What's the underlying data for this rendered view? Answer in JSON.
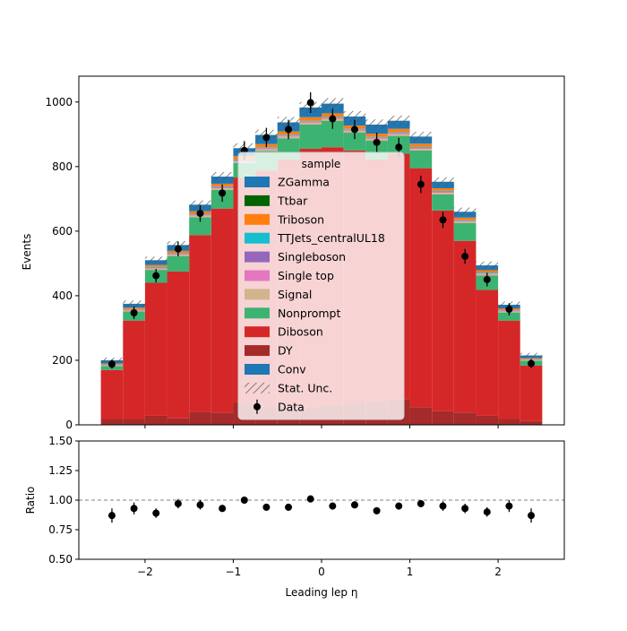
{
  "chart_data": {
    "type": "bar",
    "subtype": "stacked-histogram-with-ratio",
    "x_edges": [
      -2.5,
      -2.25,
      -2.0,
      -1.75,
      -1.5,
      -1.25,
      -1.0,
      -0.75,
      -0.5,
      -0.25,
      0.0,
      0.25,
      0.5,
      0.75,
      1.0,
      1.25,
      1.5,
      1.75,
      2.0,
      2.25,
      2.5
    ],
    "xlim": [
      -2.75,
      2.75
    ],
    "xticks": [
      -2,
      -1,
      0,
      1,
      2
    ],
    "xtick_labels": [
      "−2",
      "−1",
      "0",
      "1",
      "2"
    ],
    "xlabel": "Leading lep η",
    "ylabel": "Events",
    "ylim": [
      0,
      1080
    ],
    "yticks": [
      0,
      200,
      400,
      600,
      800,
      1000
    ],
    "ratio_ylabel": "Ratio",
    "ratio_ylim": [
      0.5,
      1.5
    ],
    "ratio_yticks": [
      0.5,
      0.75,
      1.0,
      1.25,
      1.5
    ],
    "ratio_ytick_labels": [
      "0.50",
      "0.75",
      "1.00",
      "1.25",
      "1.50"
    ],
    "legend_title": "sample",
    "legend_position": "center",
    "series": [
      {
        "name": "DY",
        "color": "#a52a2a",
        "values": [
          18,
          18,
          28,
          20,
          40,
          38,
          68,
          58,
          60,
          55,
          62,
          68,
          72,
          80,
          55,
          42,
          38,
          28,
          18,
          12
        ]
      },
      {
        "name": "Diboson",
        "color": "#d62728",
        "values": [
          152,
          305,
          412,
          455,
          548,
          632,
          698,
          730,
          762,
          800,
          798,
          782,
          750,
          760,
          740,
          622,
          532,
          390,
          305,
          172
        ]
      },
      {
        "name": "Nonprompt",
        "color": "#3cb371",
        "values": [
          12,
          28,
          40,
          48,
          55,
          58,
          45,
          60,
          65,
          75,
          82,
          55,
          58,
          55,
          55,
          50,
          55,
          45,
          25,
          15
        ]
      },
      {
        "name": "Signal",
        "color": "#d2b48c",
        "values": [
          2,
          3,
          4,
          4,
          5,
          5,
          5,
          6,
          6,
          6,
          6,
          6,
          6,
          6,
          5,
          5,
          4,
          4,
          3,
          2
        ]
      },
      {
        "name": "Single top",
        "color": "#e377c2",
        "values": [
          1,
          2,
          2,
          2,
          3,
          3,
          3,
          3,
          3,
          3,
          3,
          3,
          3,
          3,
          3,
          3,
          2,
          2,
          2,
          1
        ]
      },
      {
        "name": "Singleboson",
        "color": "#9467bd",
        "values": [
          1,
          1,
          1,
          1,
          1,
          1,
          1,
          1,
          1,
          1,
          1,
          1,
          1,
          1,
          1,
          1,
          1,
          1,
          1,
          1
        ]
      },
      {
        "name": "TTJets_centralUL18",
        "color": "#17becf",
        "values": [
          1,
          1,
          2,
          2,
          2,
          2,
          2,
          2,
          2,
          2,
          2,
          2,
          2,
          2,
          2,
          2,
          2,
          2,
          1,
          1
        ]
      },
      {
        "name": "Triboson",
        "color": "#ff7f0e",
        "values": [
          3,
          5,
          6,
          7,
          8,
          8,
          10,
          10,
          10,
          11,
          11,
          10,
          10,
          10,
          10,
          8,
          8,
          7,
          5,
          3
        ]
      },
      {
        "name": "Ttbar",
        "color": "#006400",
        "values": [
          0,
          0,
          0,
          0,
          0,
          0,
          0,
          0,
          0,
          0,
          0,
          0,
          0,
          0,
          0,
          0,
          0,
          0,
          0,
          0
        ]
      },
      {
        "name": "ZGamma",
        "color": "#1f77b4",
        "values": [
          10,
          12,
          15,
          18,
          20,
          22,
          25,
          28,
          28,
          30,
          30,
          28,
          28,
          25,
          22,
          20,
          18,
          15,
          12,
          8
        ]
      }
    ],
    "legend_entries": [
      "ZGamma",
      "Ttbar",
      "Triboson",
      "TTJets_centralUL18",
      "Singleboson",
      "Single top",
      "Signal",
      "Nonprompt",
      "Diboson",
      "DY",
      "Conv",
      "Stat. Unc.",
      "Data"
    ],
    "conv_color": "#1f77b4",
    "stat_unc": [
      8,
      10,
      11,
      12,
      13,
      14,
      15,
      16,
      17,
      17,
      17,
      17,
      16,
      16,
      15,
      14,
      13,
      12,
      10,
      8
    ],
    "data": {
      "name": "Data",
      "values": [
        188,
        347,
        462,
        545,
        655,
        718,
        850,
        890,
        915,
        998,
        948,
        915,
        875,
        860,
        745,
        635,
        522,
        450,
        358,
        190
      ],
      "errors": [
        14,
        19,
        21,
        23,
        26,
        27,
        29,
        30,
        30,
        32,
        31,
        30,
        30,
        29,
        27,
        25,
        23,
        21,
        19,
        14
      ]
    },
    "ratio": {
      "values": [
        0.87,
        0.93,
        0.89,
        0.97,
        0.96,
        0.93,
        1.0,
        0.94,
        0.94,
        1.01,
        0.95,
        0.96,
        0.91,
        0.95,
        0.97,
        0.95,
        0.93,
        0.9,
        0.95,
        0.87
      ],
      "errors": [
        0.06,
        0.05,
        0.04,
        0.04,
        0.04,
        0.03,
        0.03,
        0.03,
        0.03,
        0.03,
        0.03,
        0.03,
        0.03,
        0.03,
        0.03,
        0.04,
        0.04,
        0.04,
        0.05,
        0.06
      ]
    },
    "ratio_reference": 1.0
  }
}
